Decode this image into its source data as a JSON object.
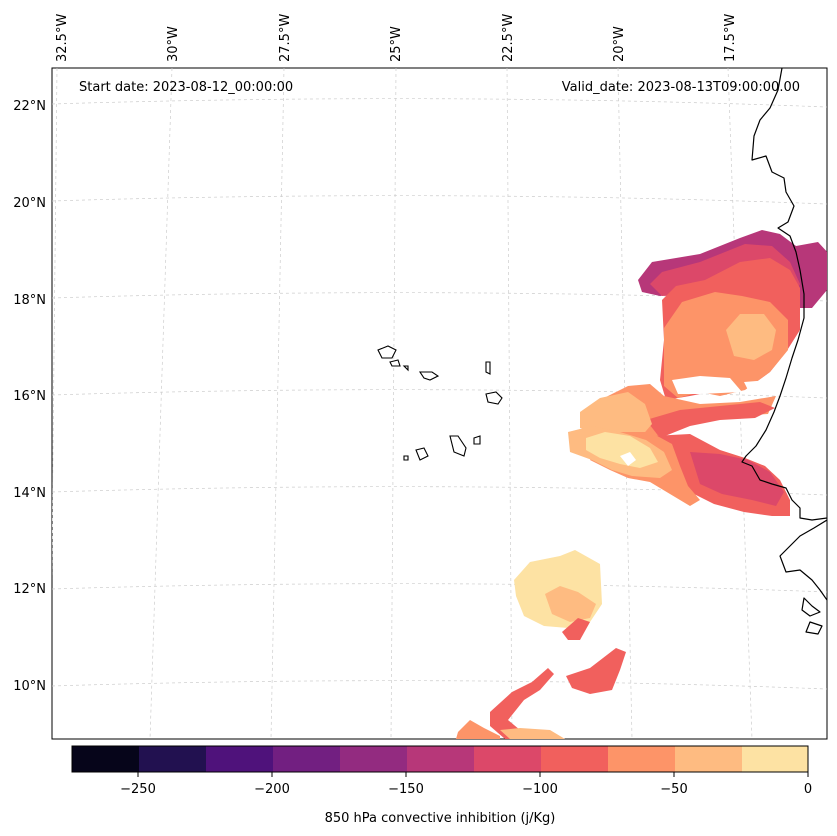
{
  "map": {
    "start_label": "Start date: 2023-08-12_00:00:00",
    "valid_label": "Valid_date: 2023-08-13T09:00:00.00",
    "lon_labels": [
      "32.5°W",
      "30°W",
      "27.5°W",
      "25°W",
      "22.5°W",
      "20°W",
      "17.5°W"
    ],
    "lat_labels": [
      "22°N",
      "20°N",
      "18°N",
      "16°N",
      "14°N",
      "12°N",
      "10°N"
    ]
  },
  "colorbar": {
    "label": "850 hPa convective inhibition (j/Kg)",
    "ticks": [
      "−250",
      "−200",
      "−150",
      "−100",
      "−50",
      "0"
    ],
    "colors": [
      "#06051a",
      "#221150",
      "#4f127b",
      "#721f81",
      "#932b80",
      "#b73779",
      "#dc4869",
      "#f1605d",
      "#fd9468",
      "#febb81",
      "#fde2a3"
    ]
  },
  "fields": {
    "c_m125": "#b73779",
    "c_m100": "#dc4869",
    "c_m75": "#f1605d",
    "c_m50": "#fd9468",
    "c_m25": "#febb81",
    "c_0": "#fde2a3"
  }
}
